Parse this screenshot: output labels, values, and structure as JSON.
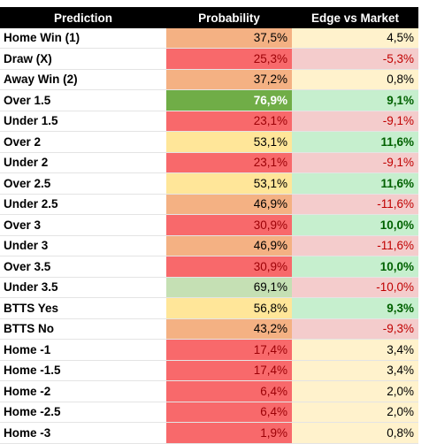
{
  "table": {
    "header": [
      "Prediction",
      "Probability",
      "Edge vs Market"
    ],
    "rows": [
      [
        "Home Win (1)",
        "37,5%",
        "4,5%"
      ],
      [
        "Draw (X)",
        "25,3%",
        "-5,3%"
      ],
      [
        "Away Win (2)",
        "37,2%",
        "0,8%"
      ],
      [
        "Over 1.5",
        "76,9%",
        "9,1%"
      ],
      [
        "Under 1.5",
        "23,1%",
        "-9,1%"
      ],
      [
        "Over 2",
        "53,1%",
        "11,6%"
      ],
      [
        "Under 2",
        "23,1%",
        "-9,1%"
      ],
      [
        "Over 2.5",
        "53,1%",
        "11,6%"
      ],
      [
        "Under 2.5",
        "46,9%",
        "-11,6%"
      ],
      [
        "Over 3",
        "30,9%",
        "10,0%"
      ],
      [
        "Under 3",
        "46,9%",
        "-11,6%"
      ],
      [
        "Over 3.5",
        "30,9%",
        "10,0%"
      ],
      [
        "Under 3.5",
        "69,1%",
        "-10,0%"
      ],
      [
        "BTTS Yes",
        "56,8%",
        "9,3%"
      ],
      [
        "BTTS No",
        "43,2%",
        "-9,3%"
      ],
      [
        "Home -1",
        "17,4%",
        "3,4%"
      ],
      [
        "Home -1.5",
        "17,4%",
        "3,4%"
      ],
      [
        "Home -2",
        "6,4%",
        "2,0%"
      ],
      [
        "Home -2.5",
        "6,4%",
        "2,0%"
      ],
      [
        "Home -3",
        "1,9%",
        "0,8%"
      ]
    ]
  }
}
